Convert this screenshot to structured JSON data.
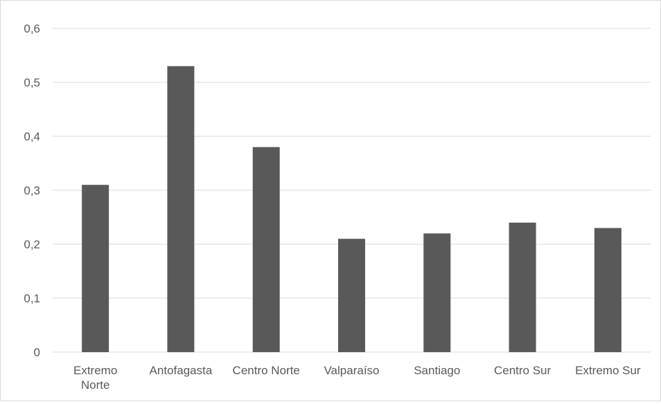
{
  "chart_data": {
    "type": "bar",
    "title": "",
    "xlabel": "",
    "ylabel": "",
    "categories": [
      "Extremo Norte",
      "Antofagasta",
      "Centro Norte",
      "Valparaíso",
      "Santiago",
      "Centro Sur",
      "Extremo Sur"
    ],
    "category_label_lines": [
      [
        "Extremo",
        "Norte"
      ],
      [
        "Antofagasta"
      ],
      [
        "Centro Norte"
      ],
      [
        "Valparaíso"
      ],
      [
        "Santiago"
      ],
      [
        "Centro Sur"
      ],
      [
        "Extremo Sur"
      ]
    ],
    "values": [
      0.31,
      0.53,
      0.38,
      0.21,
      0.22,
      0.24,
      0.23
    ],
    "ylim": [
      0,
      0.6
    ],
    "yticks": [
      0,
      0.1,
      0.2,
      0.3,
      0.4,
      0.5,
      0.6
    ],
    "ytick_labels": [
      "0",
      "0,1",
      "0,2",
      "0,3",
      "0,4",
      "0,5",
      "0,6"
    ],
    "grid": true,
    "legend": "none",
    "bar_color": "#595959",
    "grid_color": "#d9d9d9"
  }
}
